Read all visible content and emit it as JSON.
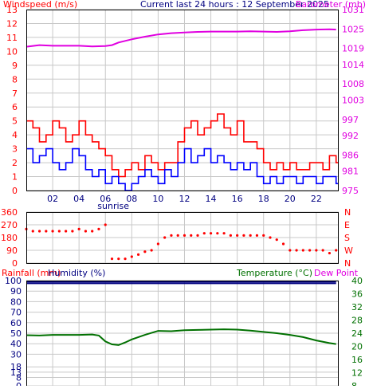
{
  "header": {
    "left_title": "Windspeed (m/s)",
    "center_title": "Current last 24 hours : 12 September 2025",
    "right_title": "Barometer (mb)"
  },
  "chart_data": [
    {
      "type": "line",
      "title": "Current last 24 hours : 12 September 2025",
      "xlabel": "",
      "x_ticks": [
        "02",
        "04",
        "06",
        "08",
        "10",
        "12",
        "14",
        "16",
        "18",
        "20",
        "22"
      ],
      "x_tick_hours": [
        2,
        4,
        6,
        8,
        10,
        12,
        14,
        16,
        18,
        20,
        22
      ],
      "xlim": [
        0,
        23.7
      ],
      "annotations": [
        {
          "text": "sunrise",
          "x": 6.6
        }
      ],
      "y_left": {
        "label": "Windspeed (m/s)",
        "ticks": [
          0,
          1,
          2,
          3,
          4,
          5,
          6,
          7,
          8,
          9,
          10,
          11,
          12,
          13
        ],
        "ylim": [
          0,
          13
        ]
      },
      "y_right": {
        "label": "Barometer (mb)",
        "ticks": [
          975,
          981,
          986,
          992,
          997,
          1003,
          1008,
          1014,
          1019,
          1025,
          1031
        ],
        "ylim": [
          975,
          1031
        ]
      },
      "grid": true,
      "series": [
        {
          "name": "Windspeed (m/s)",
          "kind": "gust",
          "axis": "left",
          "color": "#ff0000",
          "step": true,
          "x": [
            0,
            0.5,
            1,
            1.5,
            2,
            2.5,
            3,
            3.5,
            4,
            4.5,
            5,
            5.5,
            6,
            6.5,
            7,
            7.5,
            8,
            8.5,
            9,
            9.5,
            10,
            10.5,
            11,
            11.5,
            12,
            12.5,
            13,
            13.5,
            14,
            14.5,
            15,
            15.5,
            16,
            16.5,
            17,
            17.5,
            18,
            18.5,
            19,
            19.5,
            20,
            20.5,
            21,
            21.5,
            22,
            22.5,
            23,
            23.5
          ],
          "y": [
            5,
            4.5,
            3.5,
            4,
            5,
            4.5,
            3.5,
            4,
            5,
            4,
            3.5,
            3,
            2.5,
            1.5,
            1,
            1.5,
            2,
            1.5,
            2.5,
            2,
            1.5,
            2,
            2,
            3.5,
            4.5,
            5,
            4,
            4.5,
            5,
            5.5,
            4.5,
            4,
            5,
            3.5,
            3.5,
            3,
            2,
            1.5,
            2,
            1.5,
            2,
            1.5,
            1.5,
            2,
            2,
            1.5,
            2.5,
            2
          ]
        },
        {
          "name": "Windspeed (m/s)",
          "kind": "average",
          "axis": "left",
          "color": "#0000ff",
          "step": true,
          "x": [
            0,
            0.5,
            1,
            1.5,
            2,
            2.5,
            3,
            3.5,
            4,
            4.5,
            5,
            5.5,
            6,
            6.5,
            7,
            7.5,
            8,
            8.5,
            9,
            9.5,
            10,
            10.5,
            11,
            11.5,
            12,
            12.5,
            13,
            13.5,
            14,
            14.5,
            15,
            15.5,
            16,
            16.5,
            17,
            17.5,
            18,
            18.5,
            19,
            19.5,
            20,
            20.5,
            21,
            21.5,
            22,
            22.5,
            23,
            23.5
          ],
          "y": [
            3,
            2,
            2.5,
            3,
            2,
            1.5,
            2,
            3,
            2.5,
            1.5,
            1,
            1.5,
            0.5,
            1,
            0.5,
            0,
            0.5,
            1,
            1.5,
            1,
            0.5,
            1.5,
            1,
            2,
            3,
            2,
            2.5,
            3,
            2,
            2.5,
            2,
            1.5,
            2,
            1.5,
            2,
            1,
            0.5,
            1,
            0.5,
            1,
            1,
            0.5,
            1,
            1,
            0.5,
            1,
            1,
            0.5
          ]
        },
        {
          "name": "Barometer (mb)",
          "axis": "right",
          "color": "#e000e0",
          "x": [
            0,
            1,
            2,
            3,
            4,
            5,
            6,
            6.5,
            7,
            8,
            9,
            10,
            11,
            12,
            13,
            14,
            15,
            16,
            17,
            18,
            19,
            20,
            21,
            22,
            23,
            23.5
          ],
          "y": [
            1019.5,
            1020,
            1019.8,
            1019.8,
            1019.8,
            1019.6,
            1019.7,
            1020,
            1020.8,
            1021.8,
            1022.6,
            1023.3,
            1023.7,
            1023.9,
            1024.1,
            1024.2,
            1024.2,
            1024.2,
            1024.3,
            1024.2,
            1024.1,
            1024.3,
            1024.6,
            1024.8,
            1024.9,
            1024.8
          ]
        }
      ]
    },
    {
      "type": "scatter",
      "title": "",
      "y_left": {
        "ticks": [
          0,
          90,
          180,
          270,
          360
        ],
        "ylim": [
          0,
          360
        ]
      },
      "y_right": {
        "ticks": [
          "N",
          "W",
          "S",
          "E",
          "N"
        ]
      },
      "series": [
        {
          "name": "",
          "color": "#ff0000",
          "x": [
            0,
            0.5,
            1,
            1.5,
            2,
            2.5,
            3,
            3.5,
            4,
            4.5,
            5,
            5.5,
            6,
            6.5,
            7,
            7.5,
            8,
            8.5,
            9,
            9.5,
            10,
            10.5,
            11,
            11.5,
            12,
            12.5,
            13,
            13.5,
            14,
            14.5,
            15,
            15.5,
            16,
            16.5,
            17,
            17.5,
            18,
            18.5,
            19,
            19.5,
            20,
            20.5,
            21,
            21.5,
            22,
            22.5,
            23,
            23.5
          ],
          "y": [
            240,
            225,
            225,
            225,
            225,
            225,
            225,
            225,
            240,
            225,
            225,
            240,
            270,
            30,
            30,
            30,
            45,
            60,
            80,
            90,
            135,
            180,
            195,
            195,
            195,
            195,
            195,
            210,
            210,
            210,
            210,
            195,
            195,
            195,
            195,
            195,
            195,
            180,
            165,
            135,
            90,
            90,
            90,
            90,
            90,
            90,
            70,
            90
          ]
        }
      ]
    },
    {
      "type": "line",
      "title": "",
      "y_left": {
        "label": "Rainfall (mm)",
        "label2": "Humidity (%)",
        "ticks": [
          0,
          8,
          13,
          18,
          30,
          40,
          50,
          60,
          70,
          80,
          90,
          100
        ],
        "tick_labels": [
          "0",
          "8",
          "13",
          "18",
          "30",
          "40",
          "50",
          "60",
          "70",
          "80",
          "90",
          "100"
        ],
        "ylim": [
          0,
          100
        ]
      },
      "y_right": {
        "label": "Temperature (°C)",
        "label2": "Dew Point",
        "ticks": [
          8,
          12,
          16,
          20,
          24,
          28,
          32,
          36,
          40
        ],
        "ylim": [
          8,
          40
        ]
      },
      "series": [
        {
          "name": "Humidity (%)",
          "axis": "left",
          "color": "#000080",
          "x": [
            0,
            23.5
          ],
          "y": [
            99,
            99
          ]
        },
        {
          "name": "Temperature (°C)",
          "axis": "right",
          "color": "#007000",
          "x": [
            0,
            1,
            2,
            3,
            4,
            5,
            5.5,
            6,
            6.5,
            7,
            7.5,
            8,
            9,
            10,
            11,
            12,
            13,
            14,
            15,
            16,
            17,
            18,
            19,
            20,
            21,
            22,
            23,
            23.5
          ],
          "y": [
            23.4,
            23.3,
            23.5,
            23.5,
            23.5,
            23.6,
            23.3,
            21.5,
            20.6,
            20.4,
            21.2,
            22.1,
            23.5,
            24.7,
            24.6,
            24.9,
            25.0,
            25.1,
            25.2,
            25.1,
            24.8,
            24.4,
            24.0,
            23.5,
            22.8,
            21.8,
            21.0,
            20.7
          ]
        }
      ]
    }
  ]
}
